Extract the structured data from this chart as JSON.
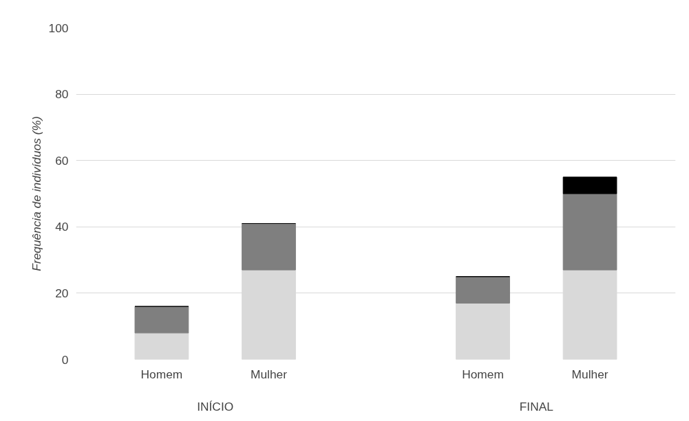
{
  "chart_data": {
    "type": "bar",
    "stacked": true,
    "ylabel": "Frequência de indivíduos (%)",
    "categories": [
      "Homem",
      "Mulher",
      "Homem",
      "Mulher"
    ],
    "series": [
      {
        "color": "#d9d9d9",
        "values": [
          8,
          27,
          17,
          27
        ]
      },
      {
        "color": "#7f7f7f",
        "values": [
          8,
          14,
          8,
          23
        ]
      },
      {
        "color": "#000000",
        "values": [
          0,
          0,
          0,
          5
        ]
      }
    ],
    "annotations": [
      "INÍCIO",
      "FINAL"
    ],
    "ylim": [
      0,
      100
    ],
    "yticks": [
      0,
      20,
      40,
      60,
      80,
      100
    ],
    "grid": "y"
  }
}
